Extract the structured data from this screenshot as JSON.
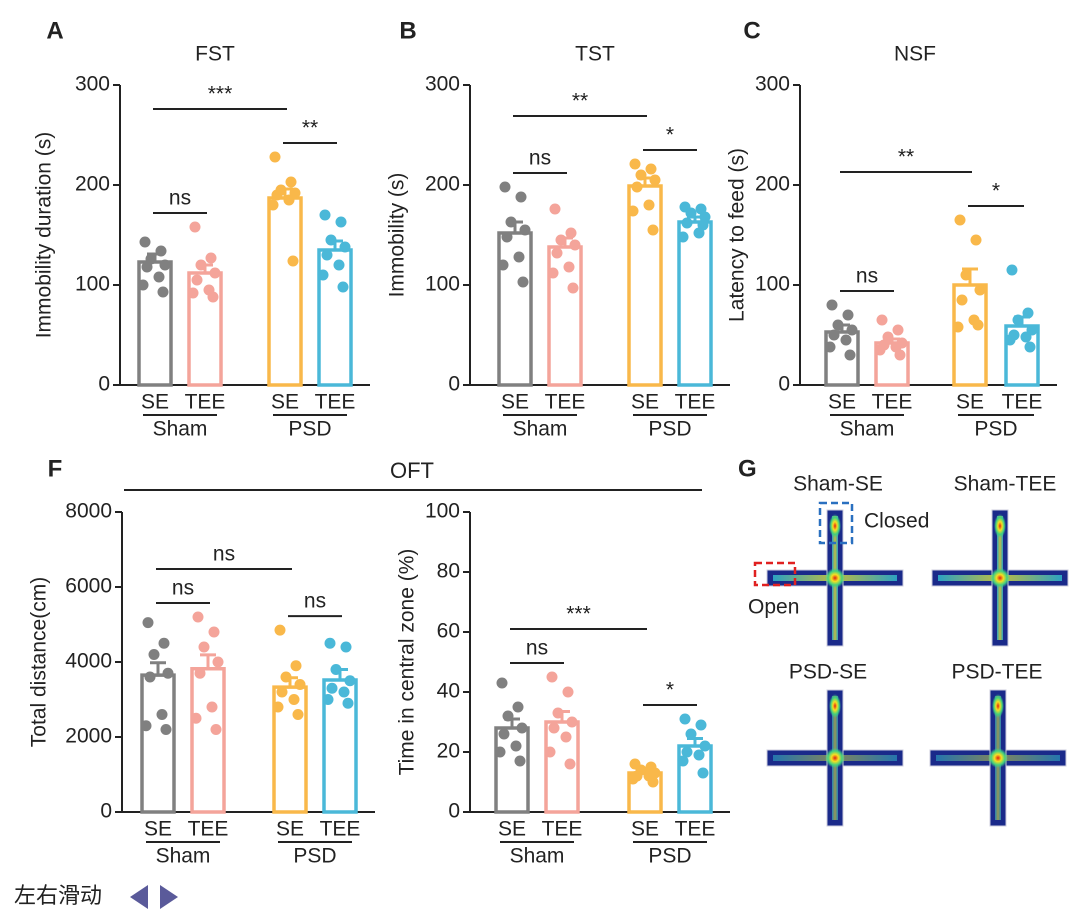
{
  "chart_data": [
    {
      "type": "bar",
      "panel": "A",
      "title": "FST",
      "ylabel": "Immobility duration (s)",
      "ylim": [
        0,
        300
      ],
      "yticks": [
        0,
        100,
        200,
        300
      ],
      "categories": [
        "SE",
        "TEE",
        "SE",
        "TEE"
      ],
      "groups": [
        "Sham",
        "PSD"
      ],
      "colors": [
        "#808080",
        "#f4a49a",
        "#f9b84a",
        "#4ab8d8"
      ],
      "values": [
        123,
        112,
        187,
        135
      ],
      "errors": [
        8,
        8,
        9,
        9
      ],
      "points": [
        [
          143,
          134,
          126,
          120,
          118,
          108,
          100,
          93
        ],
        [
          158,
          127,
          120,
          112,
          105,
          95,
          92,
          88
        ],
        [
          228,
          203,
          195,
          192,
          190,
          185,
          180,
          124
        ],
        [
          170,
          163,
          145,
          138,
          130,
          120,
          110,
          98
        ]
      ],
      "significance": {
        "sham": "ns",
        "psd": "**",
        "se": "***"
      }
    },
    {
      "type": "bar",
      "panel": "B",
      "title": "TST",
      "ylabel": "Immobility (s)",
      "ylim": [
        0,
        300
      ],
      "yticks": [
        0,
        100,
        200,
        300
      ],
      "categories": [
        "SE",
        "TEE",
        "SE",
        "TEE"
      ],
      "groups": [
        "Sham",
        "PSD"
      ],
      "colors": [
        "#808080",
        "#f4a49a",
        "#f9b84a",
        "#4ab8d8"
      ],
      "values": [
        152,
        138,
        199,
        163
      ],
      "errors": [
        11,
        9,
        8,
        5
      ],
      "points": [
        [
          198,
          188,
          163,
          155,
          148,
          128,
          120,
          103
        ],
        [
          176,
          152,
          145,
          140,
          132,
          118,
          112,
          97
        ],
        [
          221,
          216,
          210,
          205,
          198,
          180,
          174,
          155
        ],
        [
          178,
          176,
          172,
          168,
          162,
          152,
          148,
          160
        ]
      ],
      "significance": {
        "sham": "ns",
        "psd": "*",
        "se": "**"
      }
    },
    {
      "type": "bar",
      "panel": "C",
      "title": "NSF",
      "ylabel": "Latency to feed (s)",
      "ylim": [
        0,
        300
      ],
      "yticks": [
        0,
        100,
        200,
        300
      ],
      "categories": [
        "SE",
        "TEE",
        "SE",
        "TEE"
      ],
      "groups": [
        "Sham",
        "PSD"
      ],
      "colors": [
        "#808080",
        "#f4a49a",
        "#f9b84a",
        "#4ab8d8"
      ],
      "values": [
        53,
        42,
        100,
        59
      ],
      "errors": [
        7,
        4,
        16,
        9
      ],
      "points": [
        [
          80,
          70,
          60,
          55,
          50,
          45,
          38,
          30
        ],
        [
          65,
          55,
          48,
          42,
          40,
          38,
          35,
          30
        ],
        [
          165,
          145,
          110,
          95,
          85,
          65,
          58,
          60
        ],
        [
          115,
          72,
          65,
          55,
          50,
          48,
          45,
          38
        ]
      ],
      "significance": {
        "sham": "ns",
        "psd": "*",
        "se": "**"
      }
    },
    {
      "type": "bar",
      "panel": "F",
      "ylabel": "Total distance(cm)",
      "ylim": [
        0,
        8000
      ],
      "yticks": [
        0,
        2000,
        4000,
        6000,
        8000
      ],
      "categories": [
        "SE",
        "TEE",
        "SE",
        "TEE"
      ],
      "groups": [
        "Sham",
        "PSD"
      ],
      "colors": [
        "#808080",
        "#f4a49a",
        "#f9b84a",
        "#4ab8d8"
      ],
      "values": [
        3650,
        3820,
        3330,
        3520
      ],
      "errors": [
        330,
        370,
        250,
        280
      ],
      "points": [
        [
          5050,
          4500,
          4200,
          3700,
          3600,
          2600,
          2300,
          2200
        ],
        [
          5200,
          4800,
          4400,
          4000,
          3700,
          2800,
          2500,
          2200
        ],
        [
          4850,
          3900,
          3600,
          3400,
          3200,
          3000,
          2800,
          2600
        ],
        [
          4500,
          4400,
          3800,
          3500,
          3300,
          3200,
          3000,
          2900
        ]
      ],
      "significance": {
        "sham": "ns",
        "psd": "ns",
        "se": "ns"
      }
    },
    {
      "type": "bar",
      "ylabel": "Time in central zone (%)",
      "ylim": [
        0,
        100
      ],
      "yticks": [
        0,
        20,
        40,
        60,
        80,
        100
      ],
      "categories": [
        "SE",
        "TEE",
        "SE",
        "TEE"
      ],
      "groups": [
        "Sham",
        "PSD"
      ],
      "colors": [
        "#808080",
        "#f4a49a",
        "#f9b84a",
        "#4ab8d8"
      ],
      "values": [
        28,
        30,
        13,
        22
      ],
      "errors": [
        3,
        3.5,
        1,
        2.5
      ],
      "points": [
        [
          43,
          35,
          32,
          28,
          26,
          22,
          20,
          17
        ],
        [
          45,
          40,
          33,
          30,
          28,
          25,
          20,
          16
        ],
        [
          16,
          15,
          14,
          13,
          12,
          12,
          11,
          10
        ],
        [
          31,
          29,
          26,
          22,
          20,
          19,
          17,
          13
        ]
      ],
      "significance": {
        "sham": "ns",
        "psd": "*",
        "se": "***"
      }
    }
  ],
  "oft_title": "OFT",
  "panel_g": {
    "label": "G",
    "maps": [
      "Sham-SE",
      "Sham-TEE",
      "PSD-SE",
      "PSD-TEE"
    ],
    "closed": "Closed",
    "open": "Open"
  },
  "footer": {
    "text": "左右滑动"
  }
}
